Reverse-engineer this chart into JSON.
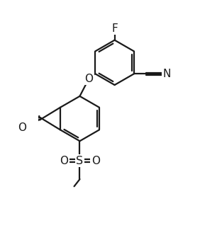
{
  "bg_color": "#ffffff",
  "line_color": "#1a1a1a",
  "line_width": 1.6,
  "fig_width": 2.82,
  "fig_height": 3.32,
  "dpi": 100,
  "xlim": [
    -0.3,
    5.2
  ],
  "ylim": [
    -1.8,
    8.5
  ]
}
